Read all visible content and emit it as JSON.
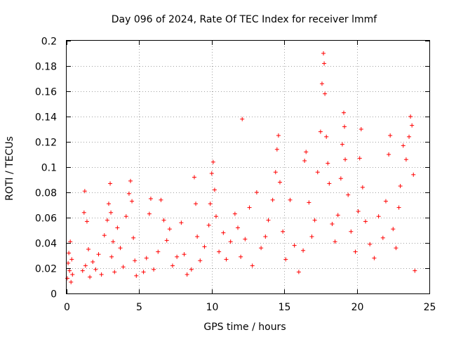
{
  "chart_data": {
    "type": "scatter",
    "title": "Day 096 of 2024, Rate Of TEC Index for receiver lmmf",
    "xlabel": "GPS time / hours",
    "ylabel": "ROTI / TECUs",
    "xlim": [
      0,
      25
    ],
    "ylim": [
      0,
      0.2
    ],
    "x_ticks": [
      0,
      5,
      10,
      15,
      20,
      25
    ],
    "x_tick_labels": [
      "0",
      "5",
      "10",
      "15",
      "20",
      "25"
    ],
    "y_ticks": [
      0,
      0.02,
      0.04,
      0.06,
      0.08,
      0.1,
      0.12,
      0.14,
      0.16,
      0.18,
      0.2
    ],
    "y_tick_labels": [
      "0",
      "0.02",
      "0.04",
      "0.06",
      "0.08",
      "0.1",
      "0.12",
      "0.14",
      "0.16",
      "0.18",
      "0.2"
    ],
    "grid": true,
    "marker": "+",
    "marker_color": "#ff0000",
    "series": [
      {
        "name": "ROTI",
        "points": [
          [
            0.05,
            0.012
          ],
          [
            0.1,
            0.024
          ],
          [
            0.15,
            0.032
          ],
          [
            0.2,
            0.018
          ],
          [
            0.25,
            0.041
          ],
          [
            0.3,
            0.009
          ],
          [
            0.35,
            0.027
          ],
          [
            0.4,
            0.015
          ],
          [
            1.1,
            0.018
          ],
          [
            1.2,
            0.064
          ],
          [
            1.25,
            0.081
          ],
          [
            1.3,
            0.022
          ],
          [
            1.4,
            0.057
          ],
          [
            1.5,
            0.035
          ],
          [
            1.6,
            0.013
          ],
          [
            1.8,
            0.025
          ],
          [
            2.0,
            0.019
          ],
          [
            2.2,
            0.031
          ],
          [
            2.4,
            0.015
          ],
          [
            2.6,
            0.046
          ],
          [
            2.8,
            0.058
          ],
          [
            2.9,
            0.071
          ],
          [
            3.0,
            0.087
          ],
          [
            3.05,
            0.064
          ],
          [
            3.1,
            0.029
          ],
          [
            3.2,
            0.041
          ],
          [
            3.3,
            0.017
          ],
          [
            3.5,
            0.052
          ],
          [
            3.7,
            0.036
          ],
          [
            3.9,
            0.021
          ],
          [
            4.1,
            0.061
          ],
          [
            4.3,
            0.079
          ],
          [
            4.4,
            0.089
          ],
          [
            4.5,
            0.073
          ],
          [
            4.6,
            0.044
          ],
          [
            4.7,
            0.026
          ],
          [
            4.8,
            0.014
          ],
          [
            5.3,
            0.017
          ],
          [
            5.5,
            0.028
          ],
          [
            5.7,
            0.063
          ],
          [
            5.8,
            0.075
          ],
          [
            6.0,
            0.019
          ],
          [
            6.3,
            0.033
          ],
          [
            6.5,
            0.074
          ],
          [
            6.7,
            0.058
          ],
          [
            6.9,
            0.042
          ],
          [
            7.1,
            0.051
          ],
          [
            7.3,
            0.022
          ],
          [
            7.6,
            0.029
          ],
          [
            7.9,
            0.056
          ],
          [
            8.1,
            0.031
          ],
          [
            8.3,
            0.015
          ],
          [
            8.6,
            0.019
          ],
          [
            8.8,
            0.092
          ],
          [
            8.9,
            0.071
          ],
          [
            9.0,
            0.045
          ],
          [
            9.2,
            0.026
          ],
          [
            9.5,
            0.037
          ],
          [
            9.8,
            0.054
          ],
          [
            9.9,
            0.071
          ],
          [
            10.0,
            0.095
          ],
          [
            10.1,
            0.104
          ],
          [
            10.2,
            0.082
          ],
          [
            10.3,
            0.061
          ],
          [
            10.5,
            0.033
          ],
          [
            10.8,
            0.048
          ],
          [
            11.0,
            0.027
          ],
          [
            11.3,
            0.041
          ],
          [
            11.6,
            0.063
          ],
          [
            11.8,
            0.052
          ],
          [
            12.0,
            0.029
          ],
          [
            12.1,
            0.138
          ],
          [
            12.3,
            0.043
          ],
          [
            12.6,
            0.068
          ],
          [
            12.8,
            0.022
          ],
          [
            13.1,
            0.08
          ],
          [
            13.4,
            0.036
          ],
          [
            13.7,
            0.045
          ],
          [
            13.9,
            0.058
          ],
          [
            14.2,
            0.074
          ],
          [
            14.4,
            0.096
          ],
          [
            14.5,
            0.114
          ],
          [
            14.6,
            0.125
          ],
          [
            14.7,
            0.088
          ],
          [
            14.9,
            0.049
          ],
          [
            15.1,
            0.027
          ],
          [
            15.4,
            0.074
          ],
          [
            15.7,
            0.038
          ],
          [
            16.0,
            0.017
          ],
          [
            16.3,
            0.034
          ],
          [
            16.4,
            0.105
          ],
          [
            16.5,
            0.112
          ],
          [
            16.7,
            0.072
          ],
          [
            16.9,
            0.045
          ],
          [
            17.1,
            0.058
          ],
          [
            17.3,
            0.096
          ],
          [
            17.5,
            0.128
          ],
          [
            17.6,
            0.166
          ],
          [
            17.7,
            0.19
          ],
          [
            17.75,
            0.182
          ],
          [
            17.8,
            0.158
          ],
          [
            17.9,
            0.124
          ],
          [
            18.0,
            0.103
          ],
          [
            18.1,
            0.087
          ],
          [
            18.3,
            0.055
          ],
          [
            18.5,
            0.041
          ],
          [
            18.7,
            0.062
          ],
          [
            18.9,
            0.091
          ],
          [
            19.0,
            0.118
          ],
          [
            19.1,
            0.143
          ],
          [
            19.15,
            0.132
          ],
          [
            19.2,
            0.106
          ],
          [
            19.4,
            0.078
          ],
          [
            19.6,
            0.049
          ],
          [
            19.9,
            0.033
          ],
          [
            20.1,
            0.065
          ],
          [
            20.2,
            0.107
          ],
          [
            20.3,
            0.13
          ],
          [
            20.4,
            0.084
          ],
          [
            20.6,
            0.057
          ],
          [
            20.9,
            0.039
          ],
          [
            21.2,
            0.028
          ],
          [
            21.5,
            0.061
          ],
          [
            21.8,
            0.044
          ],
          [
            22.0,
            0.073
          ],
          [
            22.2,
            0.11
          ],
          [
            22.3,
            0.125
          ],
          [
            22.5,
            0.051
          ],
          [
            22.7,
            0.036
          ],
          [
            22.9,
            0.068
          ],
          [
            23.0,
            0.085
          ],
          [
            23.2,
            0.117
          ],
          [
            23.4,
            0.106
          ],
          [
            23.6,
            0.124
          ],
          [
            23.7,
            0.14
          ],
          [
            23.8,
            0.133
          ],
          [
            23.9,
            0.094
          ],
          [
            24.0,
            0.018
          ]
        ]
      }
    ]
  }
}
